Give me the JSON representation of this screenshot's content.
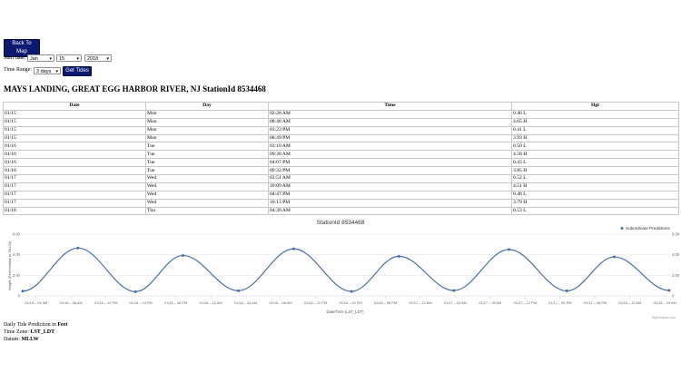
{
  "controls": {
    "back_to_map": "Back To Map",
    "start_date_label": "Start date:",
    "month": "Jan",
    "day": "15",
    "year": "2018",
    "time_range_label": "Time Range:",
    "time_range": "3 days",
    "get_tides": "Get Tides"
  },
  "heading": "MAYS LANDING, GREAT EGG HARBOR RIVER, NJ StationId 8534468",
  "table": {
    "headers": [
      "Date",
      "Day",
      "Time",
      "Hgt"
    ],
    "rows": [
      [
        "01/15",
        "Mon",
        "02:28 AM",
        "0.46 L"
      ],
      [
        "01/15",
        "Mon",
        "08:48 AM",
        "4.65 H"
      ],
      [
        "01/15",
        "Mon",
        "03:23 PM",
        "0.41 L"
      ],
      [
        "01/15",
        "Mon",
        "08:49 PM",
        "3.93 H"
      ],
      [
        "01/16",
        "Tue",
        "03:10 AM",
        "0.50 L"
      ],
      [
        "01/16",
        "Tue",
        "09:30 AM",
        "4.58 H"
      ],
      [
        "01/16",
        "Tue",
        "04:07 PM",
        "0.43 L"
      ],
      [
        "01/16",
        "Tue",
        "09:32 PM",
        "3.85 H"
      ],
      [
        "01/17",
        "Wed",
        "03:51 AM",
        "0.52 L"
      ],
      [
        "01/17",
        "Wed",
        "10:09 AM",
        "4.51 H"
      ],
      [
        "01/17",
        "Wed",
        "04:47 PM",
        "0.48 L"
      ],
      [
        "01/17",
        "Wed",
        "10:13 PM",
        "3.79 H"
      ],
      [
        "01/18",
        "Thu",
        "04:30 AM",
        "0.53 L"
      ]
    ]
  },
  "chart_data": {
    "type": "line",
    "title": "StationId 8534468",
    "xlabel": "Date/Time (LST_LDT)",
    "ylabel": "Height (Feet relative to MLLW)",
    "ylim": [
      0,
      6
    ],
    "yticks": [
      "0",
      "2.00",
      "4.00",
      "6.00"
    ],
    "xticks": [
      "01/15 – 04 AM",
      "01/15 – 08 AM",
      "01/15 – 12 PM",
      "01/15 – 04 PM",
      "01/15 – 08 PM",
      "01/16 – 12 AM",
      "01/16 – 04 AM",
      "01/16 – 08 AM",
      "01/16 – 12 PM",
      "01/16 – 04 PM",
      "01/16 – 08 PM",
      "01/17 – 12 AM",
      "01/17 – 04 AM",
      "01/17 – 08 AM",
      "01/17 – 12 PM",
      "01/17 – 04 PM",
      "01/17 – 08 PM",
      "01/18 – 12 AM",
      "01/18 – 04 AM"
    ],
    "x_range_hours": [
      2.4667,
      76.5
    ],
    "legend_position": "top-right",
    "grid": true,
    "series": [
      {
        "name": "Subordinate Predictions",
        "color": "#4a6fa5",
        "points": [
          {
            "hour": 2.4667,
            "value": 0.46
          },
          {
            "hour": 8.8,
            "value": 4.65
          },
          {
            "hour": 15.3833,
            "value": 0.41
          },
          {
            "hour": 20.8167,
            "value": 3.93
          },
          {
            "hour": 27.1667,
            "value": 0.5
          },
          {
            "hour": 33.5,
            "value": 4.58
          },
          {
            "hour": 40.1167,
            "value": 0.43
          },
          {
            "hour": 45.5333,
            "value": 3.85
          },
          {
            "hour": 51.85,
            "value": 0.52
          },
          {
            "hour": 58.15,
            "value": 4.51
          },
          {
            "hour": 64.7833,
            "value": 0.48
          },
          {
            "hour": 70.2167,
            "value": 3.79
          },
          {
            "hour": 76.5,
            "value": 0.53
          }
        ]
      }
    ],
    "credit": "Highcharts.com"
  },
  "footer": {
    "line1_prefix": "Daily Tide Prediction in ",
    "line1_unit": "Feet",
    "line2_prefix": "Time Zone: ",
    "line2_value": "LST_LDT",
    "line3_prefix": "Datum: ",
    "line3_value": "MLLW"
  }
}
